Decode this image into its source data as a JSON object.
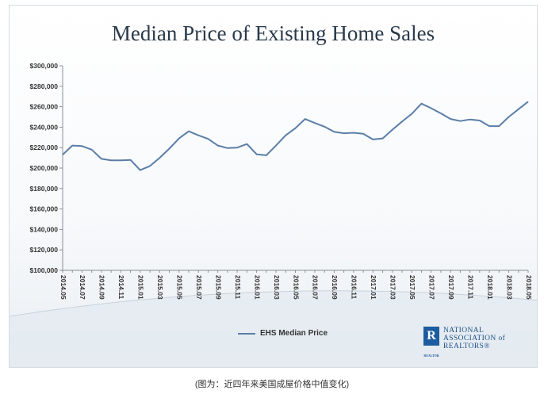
{
  "chart_data": {
    "type": "line",
    "title": "Median Price of Existing Home Sales",
    "xlabel": "",
    "ylabel": "",
    "ylim": [
      100000,
      300000
    ],
    "y_ticks": [
      "$100,000",
      "$120,000",
      "$140,000",
      "$160,000",
      "$180,000",
      "$200,000",
      "$220,000",
      "$240,000",
      "$260,000",
      "$280,000",
      "$300,000"
    ],
    "x_tick_labels": [
      "2014.05",
      "2014.07",
      "2014.09",
      "2014.11",
      "2015.01",
      "2015.03",
      "2015.05",
      "2015.07",
      "2015.09",
      "2015.11",
      "2016.01",
      "2016.03",
      "2016.05",
      "2016.07",
      "2016.09",
      "2016.11",
      "2017.01",
      "2017.03",
      "2017.05",
      "2017.07",
      "2017.09",
      "2017.11",
      "2018.01",
      "2018.03",
      "2018.05"
    ],
    "x": [
      "2014.05",
      "2014.06",
      "2014.07",
      "2014.08",
      "2014.09",
      "2014.10",
      "2014.11",
      "2014.12",
      "2015.01",
      "2015.02",
      "2015.03",
      "2015.04",
      "2015.05",
      "2015.06",
      "2015.07",
      "2015.08",
      "2015.09",
      "2015.10",
      "2015.11",
      "2015.12",
      "2016.01",
      "2016.02",
      "2016.03",
      "2016.04",
      "2016.05",
      "2016.06",
      "2016.07",
      "2016.08",
      "2016.09",
      "2016.10",
      "2016.11",
      "2016.12",
      "2017.01",
      "2017.02",
      "2017.03",
      "2017.04",
      "2017.05",
      "2017.06",
      "2017.07",
      "2017.08",
      "2017.09",
      "2017.10",
      "2017.11",
      "2017.12",
      "2018.01",
      "2018.02",
      "2018.03",
      "2018.04",
      "2018.05"
    ],
    "series": [
      {
        "name": "EHS Median Price",
        "color": "#5b7ea8",
        "values": [
          213000,
          222000,
          221500,
          218000,
          209000,
          207500,
          207500,
          208000,
          198000,
          202000,
          210000,
          219000,
          229000,
          236000,
          232000,
          228500,
          222000,
          219500,
          220000,
          223500,
          213500,
          212500,
          222000,
          232000,
          239000,
          248000,
          244000,
          240500,
          235500,
          234000,
          234500,
          233500,
          228000,
          229000,
          237500,
          245500,
          253000,
          263000,
          258500,
          253500,
          248000,
          246000,
          247500,
          246500,
          241000,
          241000,
          250000,
          257500,
          265000
        ]
      }
    ],
    "legend_position": "bottom",
    "grid": false
  },
  "logo": {
    "mark": "R",
    "sub": "REALTOR",
    "lines": [
      "NATIONAL",
      "ASSOCIATION of",
      "REALTORS®"
    ]
  },
  "caption": "(图为：近四年来美国成屋价格中值变化)"
}
